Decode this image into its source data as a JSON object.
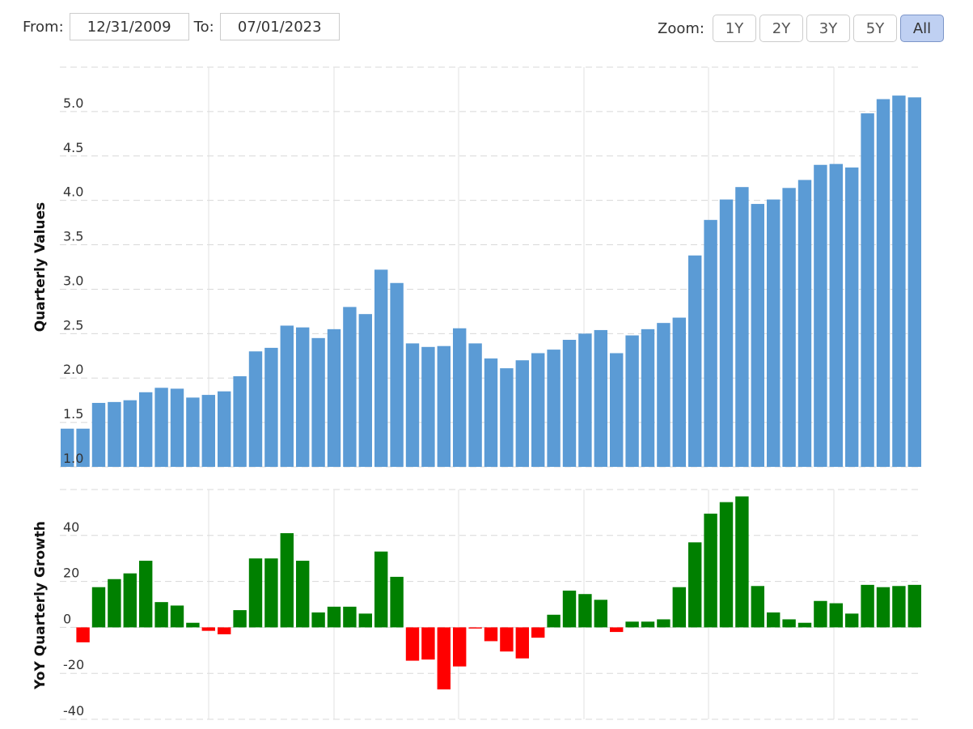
{
  "range": {
    "from_label": "From:",
    "from_value": "12/31/2009",
    "to_label": "To:",
    "to_value": "07/01/2023"
  },
  "zoom": {
    "label": "Zoom:",
    "buttons": [
      {
        "label": "1Y",
        "active": false
      },
      {
        "label": "2Y",
        "active": false
      },
      {
        "label": "3Y",
        "active": false
      },
      {
        "label": "5Y",
        "active": false
      },
      {
        "label": "All",
        "active": true
      }
    ]
  },
  "colors": {
    "value_bar": "#5b9bd5",
    "growth_positive": "#008000",
    "growth_negative": "#ff0000",
    "grid": "#d8d8d8"
  },
  "chart_data": [
    {
      "type": "bar",
      "ylabel": "Quarterly Values",
      "ylim": [
        1.0,
        5.5
      ],
      "y_ticks": [
        "1.0",
        "1.5",
        "2.0",
        "2.5",
        "3.0",
        "3.5",
        "4.0",
        "4.5",
        "5.0"
      ],
      "grid": true,
      "values": [
        1.43,
        1.43,
        1.72,
        1.73,
        1.75,
        1.84,
        1.89,
        1.88,
        1.78,
        1.81,
        1.85,
        2.02,
        2.3,
        2.34,
        2.59,
        2.57,
        2.45,
        2.55,
        2.8,
        2.72,
        3.22,
        3.07,
        2.39,
        2.35,
        2.36,
        2.56,
        2.39,
        2.22,
        2.11,
        2.2,
        2.28,
        2.32,
        2.43,
        2.5,
        2.54,
        2.28,
        2.48,
        2.55,
        2.62,
        2.68,
        3.38,
        3.78,
        4.01,
        4.15,
        3.96,
        4.01,
        4.14,
        4.23,
        4.4,
        4.41,
        4.37,
        4.98,
        5.14,
        5.18,
        5.16
      ]
    },
    {
      "type": "bar",
      "ylabel": "YoY Quarterly Growth",
      "ylim": [
        -40,
        60
      ],
      "y_ticks": [
        "-40",
        "-20",
        "0",
        "20",
        "40"
      ],
      "grid": true,
      "values": [
        -6.5,
        17.5,
        21.0,
        23.5,
        29.0,
        11.0,
        9.5,
        2.0,
        -1.5,
        -3.0,
        7.5,
        30.0,
        30.0,
        41.0,
        29.0,
        6.5,
        9.0,
        9.0,
        6.0,
        33.0,
        22.0,
        -14.5,
        -14.0,
        -27.0,
        -17.0,
        -0.5,
        -6.0,
        -10.5,
        -13.5,
        -4.5,
        5.5,
        16.0,
        14.5,
        12.0,
        -2.0,
        2.5,
        2.5,
        3.5,
        17.5,
        37.0,
        49.5,
        54.5,
        57.0,
        18.0,
        6.5,
        3.5,
        2.0,
        11.5,
        10.5,
        6.0,
        18.5,
        17.5,
        18.0,
        18.5
      ]
    }
  ]
}
